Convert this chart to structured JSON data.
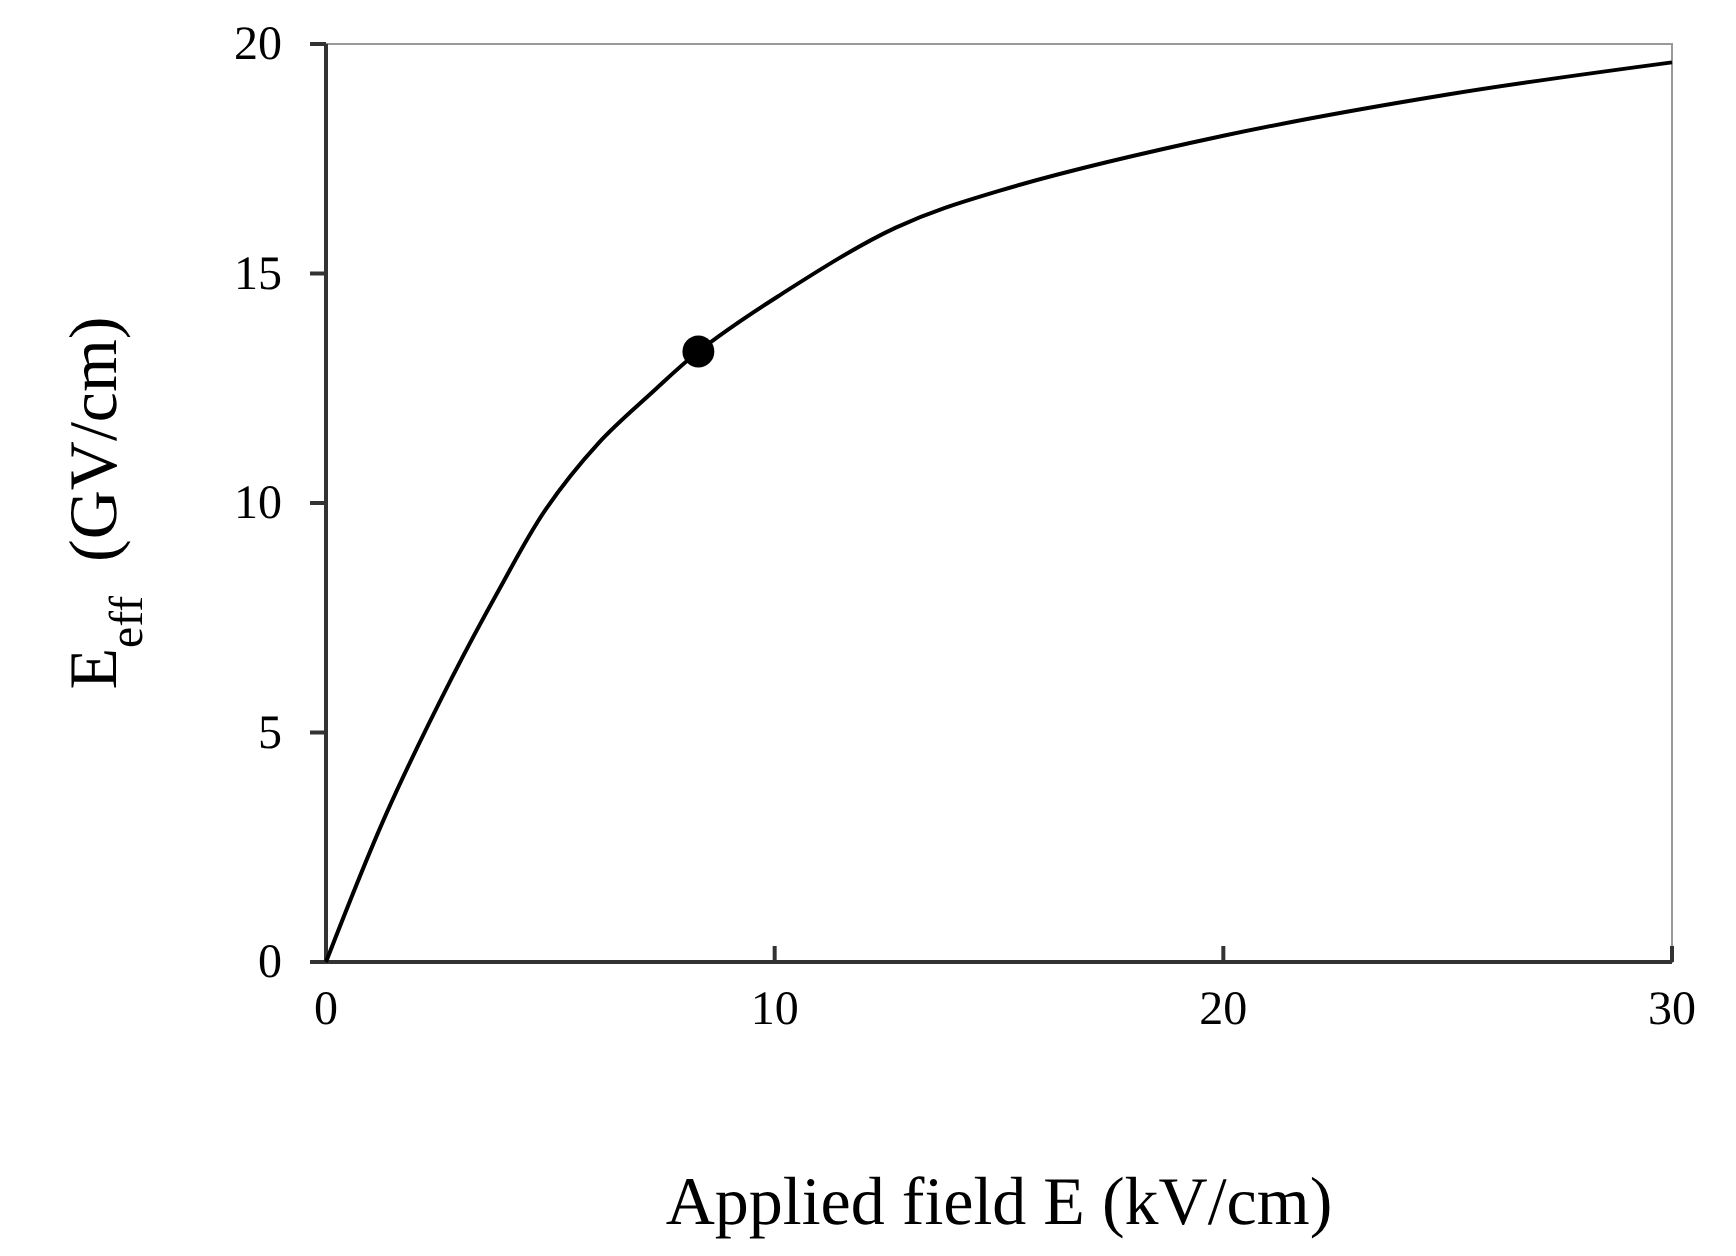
{
  "chart_data": {
    "type": "line",
    "xlabel": "Applied field E (kV/cm)",
    "ylabel": "E$_{eff}$  (GV/cm)",
    "xlim": [
      0,
      30
    ],
    "xticks": [
      0,
      10,
      20,
      30
    ],
    "ylim": [
      0,
      20
    ],
    "yticks": [
      0,
      5,
      10,
      15,
      20
    ],
    "grid": false,
    "series": [
      {
        "color": "#000000",
        "marker": "none",
        "x": [
          0,
          1.33,
          2.81,
          3.85,
          4.89,
          6.07,
          7.26,
          8.3,
          10.07,
          12.7,
          15,
          20,
          25,
          30
        ],
        "values": [
          0,
          3.2,
          6.2,
          8.1,
          9.85,
          11.3,
          12.4,
          13.3,
          14.5,
          16,
          16.8,
          18,
          18.9,
          19.6
        ]
      },
      {
        "type": "scatter",
        "color": "#000000",
        "marker": "circle",
        "x": [
          8.3
        ],
        "values": [
          13.3
        ]
      }
    ]
  }
}
